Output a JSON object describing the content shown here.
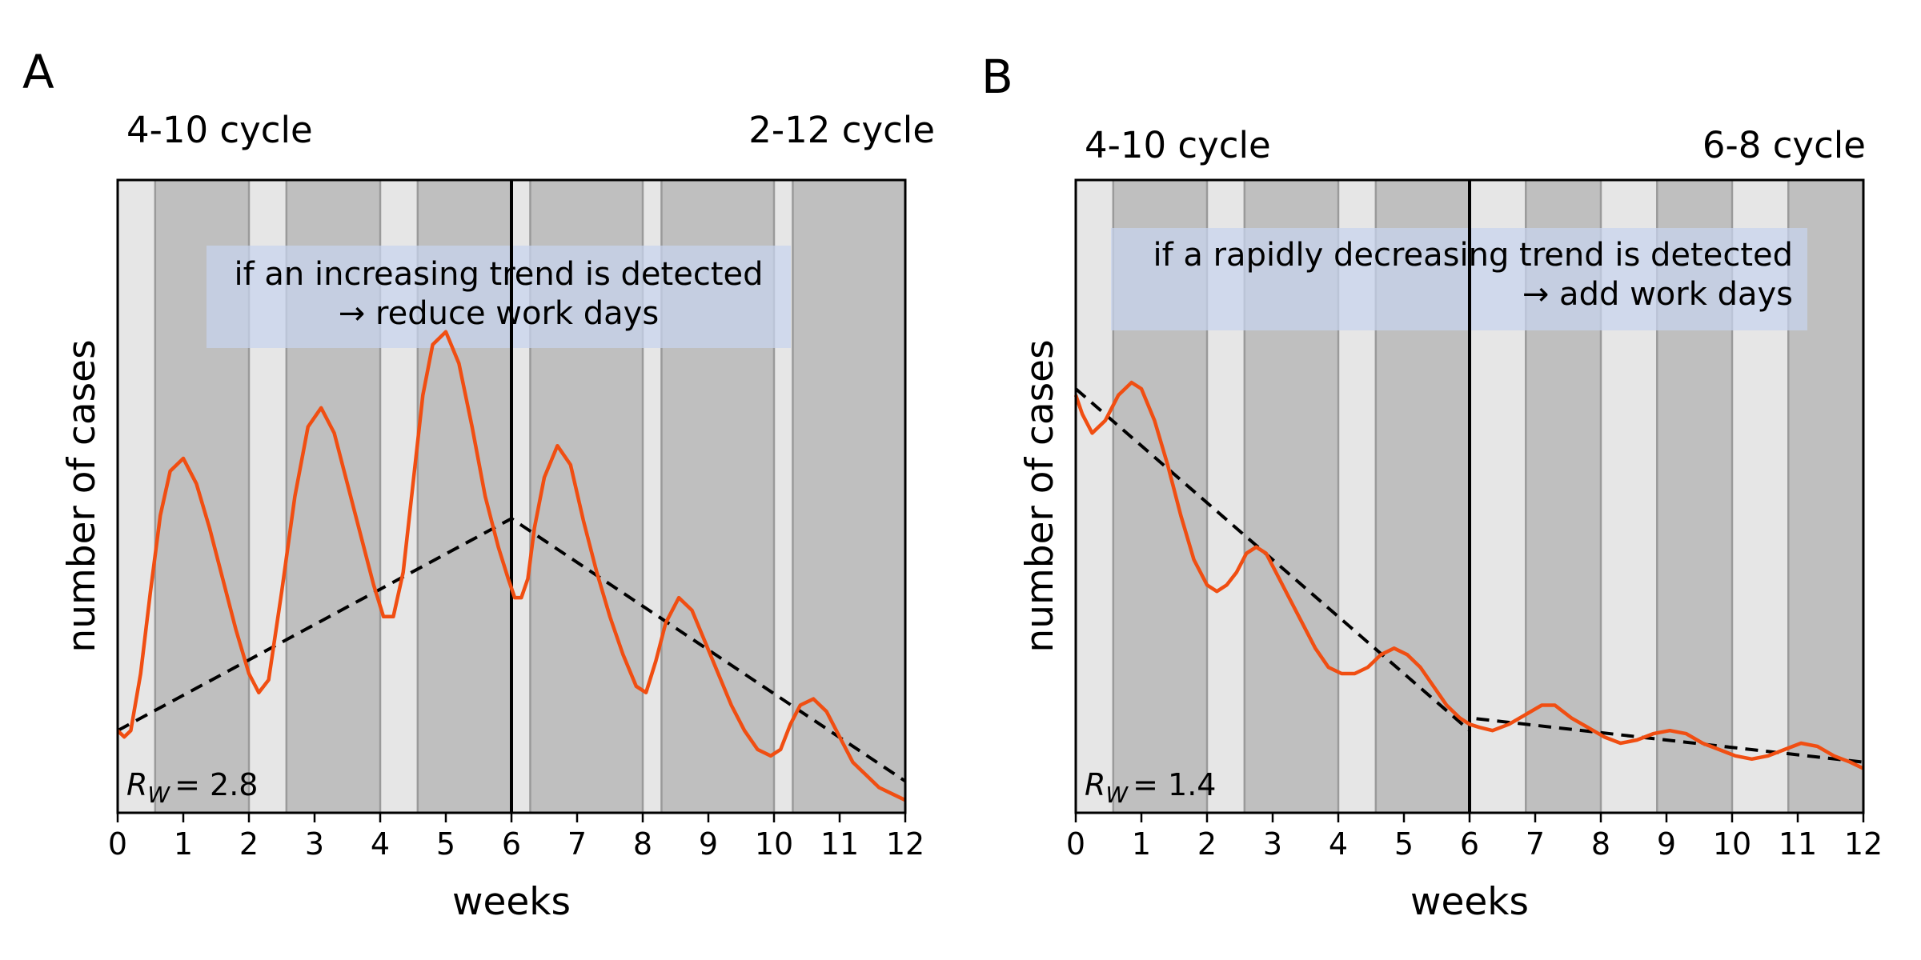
{
  "chart_data": [
    {
      "panel_label": "A",
      "type": "line",
      "left_cycle_label": "4-10 cycle",
      "right_cycle_label": "2-12 cycle",
      "xlabel": "weeks",
      "ylabel": "number of cases",
      "xlim": [
        0,
        12
      ],
      "ylim": [
        0,
        1
      ],
      "xticks": [
        0,
        1,
        2,
        3,
        4,
        5,
        6,
        7,
        8,
        9,
        10,
        11,
        12
      ],
      "y_tick_labels_shown": false,
      "switch_week": 6,
      "annotation_line1": "if an increasing trend is detected",
      "annotation_line2": "→ reduce work days",
      "r_w_symbol": "R",
      "r_w_subscript": "W",
      "r_w_value": "= 2.8",
      "work_periods": [
        [
          0.571,
          2.0
        ],
        [
          2.571,
          4.0
        ],
        [
          4.571,
          6.0
        ],
        [
          6.286,
          8.0
        ],
        [
          8.286,
          10.0
        ],
        [
          10.286,
          12.0
        ]
      ],
      "series": [
        {
          "kind": "cases",
          "x": [
            0,
            0.1,
            0.2,
            0.35,
            0.5,
            0.65,
            0.8,
            1.0,
            1.2,
            1.4,
            1.6,
            1.8,
            2.0,
            2.15,
            2.3,
            2.5,
            2.7,
            2.9,
            3.1,
            3.3,
            3.5,
            3.7,
            3.9,
            4.05,
            4.2,
            4.35,
            4.5,
            4.65,
            4.8,
            5.0,
            5.2,
            5.4,
            5.6,
            5.8,
            5.95,
            6.05,
            6.15,
            6.25,
            6.35,
            6.5,
            6.7,
            6.9,
            7.1,
            7.3,
            7.5,
            7.7,
            7.9,
            8.05,
            8.2,
            8.35,
            8.55,
            8.75,
            8.95,
            9.15,
            9.35,
            9.55,
            9.75,
            9.95,
            10.1,
            10.25,
            10.4,
            10.6,
            10.8,
            11.0,
            11.2,
            11.4,
            11.6,
            11.8,
            12.0
          ],
          "values": [
            0.13,
            0.12,
            0.13,
            0.22,
            0.35,
            0.47,
            0.54,
            0.56,
            0.52,
            0.45,
            0.37,
            0.29,
            0.22,
            0.19,
            0.21,
            0.35,
            0.5,
            0.61,
            0.64,
            0.6,
            0.52,
            0.44,
            0.36,
            0.31,
            0.31,
            0.38,
            0.52,
            0.66,
            0.74,
            0.76,
            0.71,
            0.61,
            0.5,
            0.42,
            0.37,
            0.34,
            0.34,
            0.37,
            0.45,
            0.53,
            0.58,
            0.55,
            0.46,
            0.38,
            0.31,
            0.25,
            0.2,
            0.19,
            0.24,
            0.3,
            0.34,
            0.32,
            0.27,
            0.22,
            0.17,
            0.13,
            0.1,
            0.09,
            0.1,
            0.14,
            0.17,
            0.18,
            0.16,
            0.12,
            0.08,
            0.06,
            0.04,
            0.03,
            0.02
          ]
        },
        {
          "kind": "trend",
          "x": [
            0,
            6,
            12
          ],
          "values": [
            0.13,
            0.465,
            0.05
          ]
        }
      ],
      "colors": {
        "cases": "#f04e12",
        "trend": "#000000",
        "work": "#bfbfbf",
        "home": "#e6e6e6",
        "annotation_box": "#c8d4ee"
      }
    },
    {
      "panel_label": "B",
      "type": "line",
      "left_cycle_label": "4-10 cycle",
      "right_cycle_label": "6-8 cycle",
      "xlabel": "weeks",
      "ylabel": "number of cases",
      "xlim": [
        0,
        12
      ],
      "ylim": [
        0,
        1
      ],
      "xticks": [
        0,
        1,
        2,
        3,
        4,
        5,
        6,
        7,
        8,
        9,
        10,
        11,
        12
      ],
      "y_tick_labels_shown": false,
      "switch_week": 6,
      "annotation_line1": "if a rapidly decreasing trend is detected",
      "annotation_line2": "→ add work days",
      "r_w_symbol": "R",
      "r_w_subscript": "W",
      "r_w_value": "= 1.4",
      "work_periods": [
        [
          0.571,
          2.0
        ],
        [
          2.571,
          4.0
        ],
        [
          4.571,
          6.0
        ],
        [
          6.857,
          8.0
        ],
        [
          8.857,
          10.0
        ],
        [
          10.857,
          12.0
        ]
      ],
      "series": [
        {
          "kind": "cases",
          "x": [
            0,
            0.1,
            0.25,
            0.45,
            0.65,
            0.85,
            1.0,
            1.2,
            1.4,
            1.6,
            1.8,
            2.0,
            2.15,
            2.3,
            2.45,
            2.6,
            2.75,
            2.9,
            3.05,
            3.25,
            3.45,
            3.65,
            3.85,
            4.05,
            4.25,
            4.45,
            4.65,
            4.85,
            5.05,
            5.25,
            5.45,
            5.65,
            5.85,
            6.0,
            6.15,
            6.35,
            6.6,
            6.85,
            7.1,
            7.3,
            7.55,
            7.8,
            8.05,
            8.3,
            8.55,
            8.8,
            9.05,
            9.3,
            9.55,
            9.8,
            10.05,
            10.3,
            10.55,
            10.8,
            11.05,
            11.3,
            11.55,
            11.8,
            12.0
          ],
          "values": [
            0.66,
            0.63,
            0.6,
            0.62,
            0.66,
            0.68,
            0.67,
            0.62,
            0.55,
            0.47,
            0.4,
            0.36,
            0.35,
            0.36,
            0.38,
            0.41,
            0.42,
            0.41,
            0.38,
            0.34,
            0.3,
            0.26,
            0.23,
            0.22,
            0.22,
            0.23,
            0.25,
            0.26,
            0.25,
            0.23,
            0.2,
            0.17,
            0.15,
            0.14,
            0.135,
            0.13,
            0.14,
            0.155,
            0.17,
            0.17,
            0.15,
            0.135,
            0.12,
            0.11,
            0.115,
            0.125,
            0.13,
            0.125,
            0.11,
            0.1,
            0.09,
            0.085,
            0.09,
            0.1,
            0.11,
            0.105,
            0.09,
            0.08,
            0.07
          ]
        },
        {
          "kind": "trend",
          "x": [
            0,
            6,
            6.0,
            12
          ],
          "values": [
            0.67,
            0.13,
            0.15,
            0.08
          ]
        }
      ],
      "colors": {
        "cases": "#f04e12",
        "trend": "#000000",
        "work": "#bfbfbf",
        "home": "#e6e6e6",
        "annotation_box": "#c8d4ee"
      }
    }
  ]
}
